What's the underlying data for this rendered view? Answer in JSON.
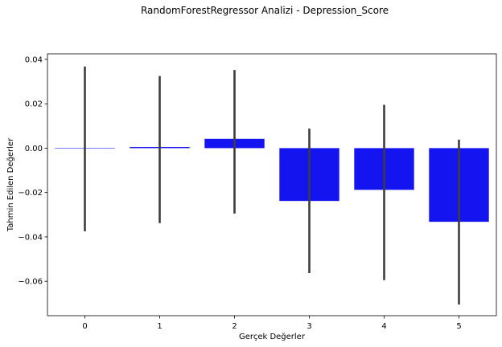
{
  "chart_data": {
    "type": "bar",
    "title": "RandomForestRegressor Analizi - Depression_Score",
    "xlabel": "Gerçek Değerler",
    "ylabel": "Tahmin Edilen Değerler",
    "categories": [
      "0",
      "1",
      "2",
      "3",
      "4",
      "5"
    ],
    "values": [
      0.0,
      0.0005,
      0.0042,
      -0.0238,
      -0.0188,
      -0.0332
    ],
    "error_bars": [
      [
        -0.0375,
        0.0368
      ],
      [
        -0.0338,
        0.0325
      ],
      [
        -0.0295,
        0.0352
      ],
      [
        -0.0563,
        0.0088
      ],
      [
        -0.0595,
        0.0195
      ],
      [
        -0.0705,
        0.0038
      ]
    ],
    "ylim": [
      -0.0755,
      0.0425
    ],
    "yticks": [
      0.04,
      0.02,
      0.0,
      -0.02,
      -0.04,
      -0.06
    ],
    "ytick_labels": [
      "0.04",
      "0.02",
      "0.00",
      "−0.02",
      "−0.04",
      "−0.06"
    ],
    "grid": false,
    "colors": {
      "bar": "#1414f0",
      "error": "#3d3d3d",
      "axis": "#000000"
    }
  }
}
